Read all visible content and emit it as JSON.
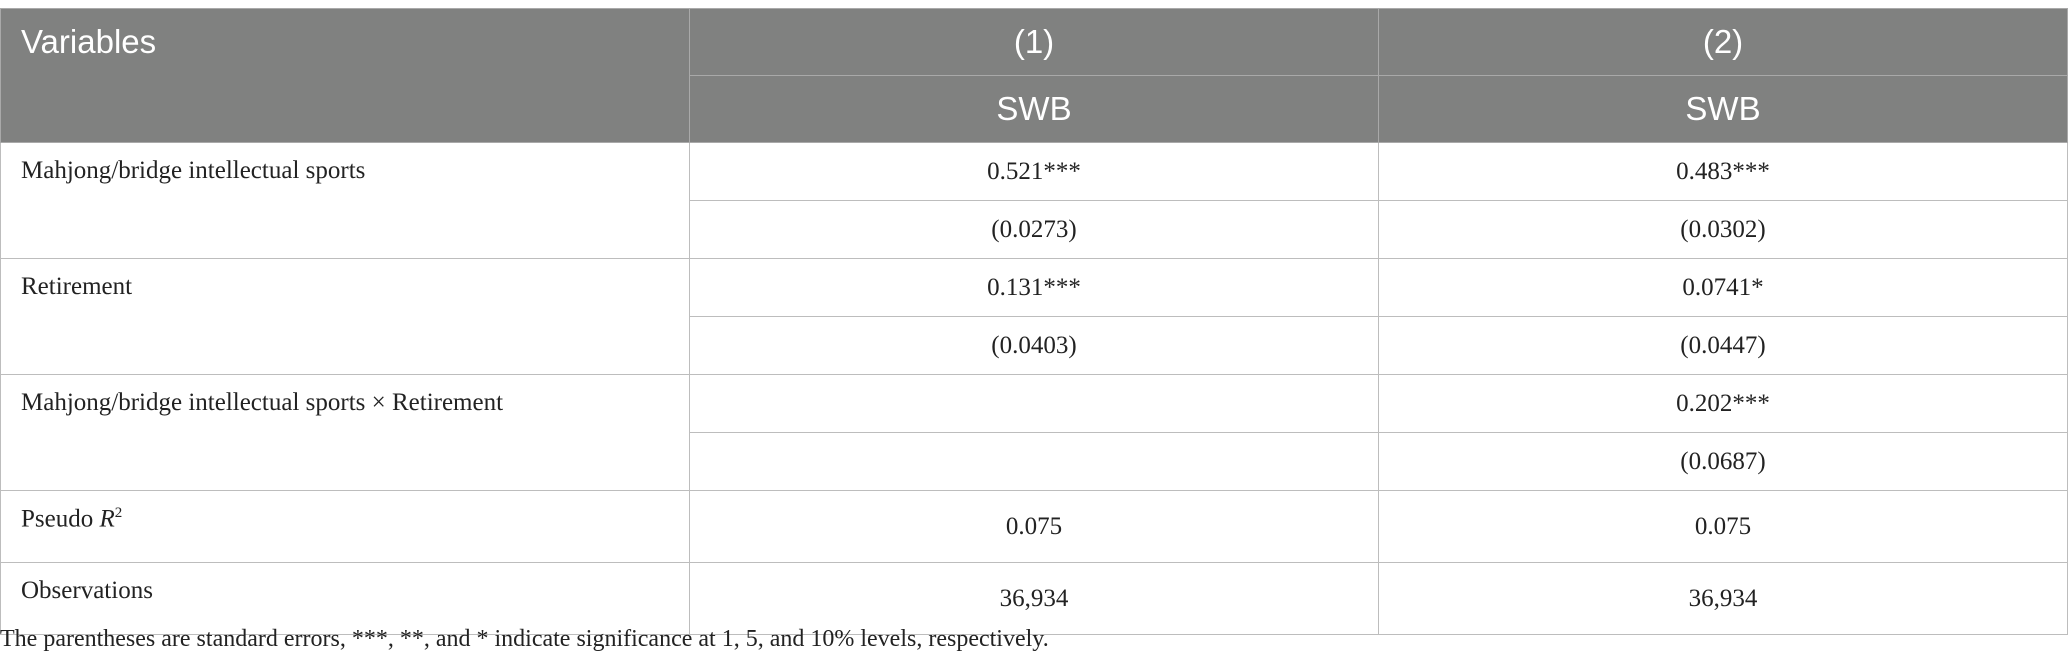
{
  "header": {
    "variables": "Variables",
    "col1_number": "(1)",
    "col2_number": "(2)",
    "col1_dv": "SWB",
    "col2_dv": "SWB"
  },
  "rows": {
    "mahjong": {
      "label": "Mahjong/bridge intellectual sports",
      "c1_coef": "0.521***",
      "c1_se": "(0.0273)",
      "c2_coef": "0.483***",
      "c2_se": "(0.0302)"
    },
    "retirement": {
      "label": "Retirement",
      "c1_coef": "0.131***",
      "c1_se": "(0.0403)",
      "c2_coef": "0.0741*",
      "c2_se": "(0.0447)"
    },
    "interaction": {
      "label": "Mahjong/bridge intellectual sports × Retirement",
      "c1_coef": "",
      "c1_se": "",
      "c2_coef": "0.202***",
      "c2_se": "(0.0687)"
    },
    "pseudo_r2": {
      "label_prefix": "Pseudo ",
      "label_var": "R",
      "label_sup": "2",
      "c1": "0.075",
      "c2": "0.075"
    },
    "observations": {
      "label": "Observations",
      "c1": "36,934",
      "c2": "36,934"
    }
  },
  "footnote": "The parentheses are standard errors, ***, **, and * indicate significance at 1, 5, and 10% levels, respectively."
}
